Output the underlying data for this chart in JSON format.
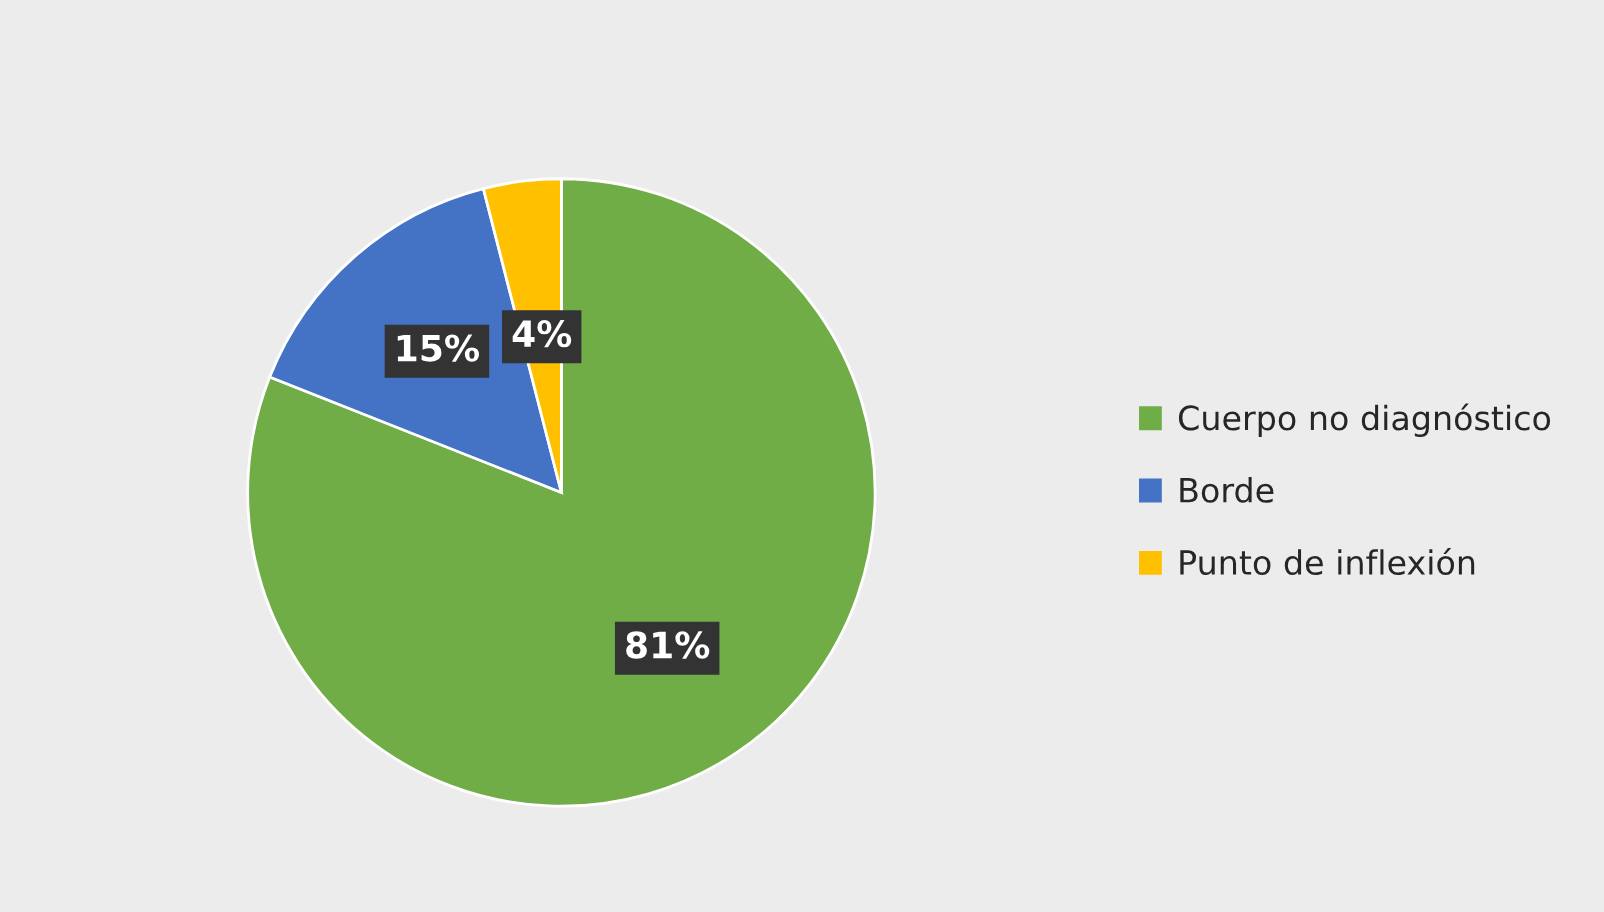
{
  "chart_data": {
    "type": "pie",
    "categories": [
      "Cuerpo no diagnóstico",
      "Borde",
      "Punto de inflexión"
    ],
    "values": [
      81,
      15,
      4
    ],
    "value_labels": [
      "81%",
      "15%",
      "4%"
    ],
    "colors": [
      "#70ad47",
      "#4472c4",
      "#ffc000"
    ],
    "legend": "right"
  }
}
